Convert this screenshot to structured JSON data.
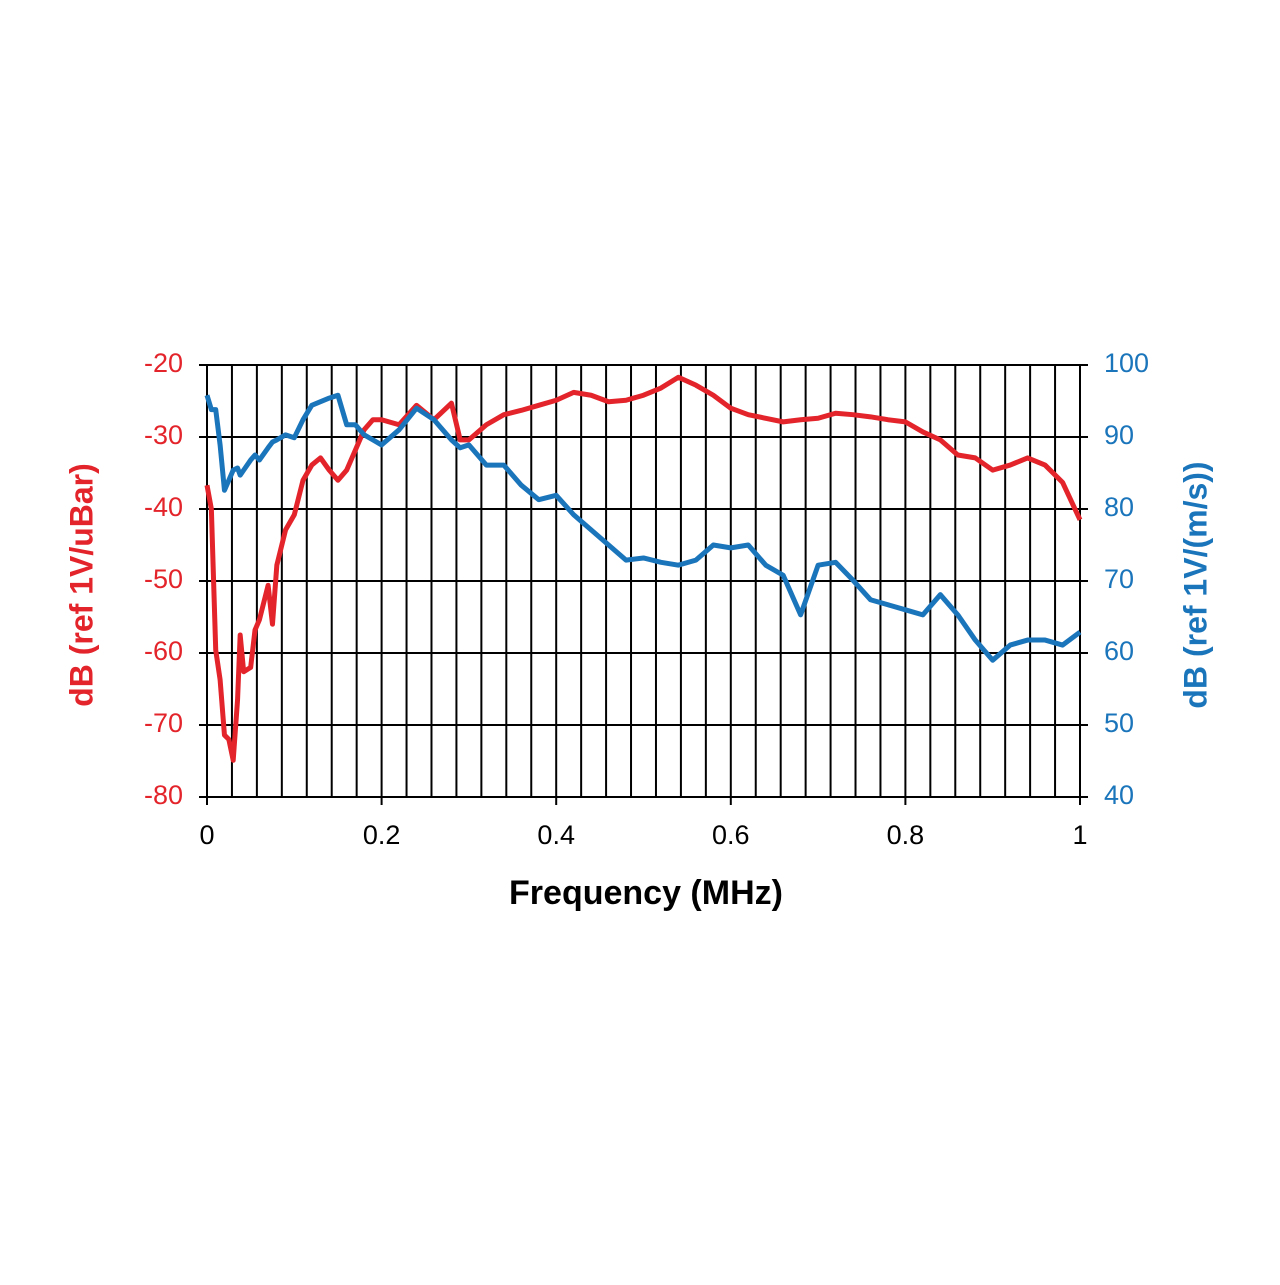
{
  "chart_data": {
    "type": "line",
    "xlabel": "Frequency (MHz)",
    "ylabel": "dB (ref 1V/uBar)",
    "y2label": "dB (ref 1V/(m/s))",
    "x": [
      0,
      0.005,
      0.01,
      0.015,
      0.02,
      0.025,
      0.03,
      0.035,
      0.038,
      0.042,
      0.05,
      0.055,
      0.06,
      0.07,
      0.075,
      0.08,
      0.09,
      0.1,
      0.11,
      0.12,
      0.13,
      0.14,
      0.15,
      0.16,
      0.17,
      0.18,
      0.19,
      0.2,
      0.22,
      0.24,
      0.26,
      0.28,
      0.29,
      0.3,
      0.32,
      0.34,
      0.36,
      0.38,
      0.4,
      0.42,
      0.44,
      0.46,
      0.48,
      0.5,
      0.52,
      0.54,
      0.56,
      0.58,
      0.6,
      0.62,
      0.64,
      0.66,
      0.68,
      0.7,
      0.72,
      0.74,
      0.76,
      0.78,
      0.8,
      0.82,
      0.84,
      0.86,
      0.88,
      0.9,
      0.92,
      0.94,
      0.96,
      0.98,
      1
    ],
    "series": [
      {
        "name": "dB (ref 1V/uBar)",
        "color": "#e3242b",
        "axis": "y",
        "values": [
          -36.7,
          -40,
          -59.6,
          -63.7,
          -71.4,
          -72,
          -74.9,
          -66.5,
          -57.5,
          -62.6,
          -62,
          -56.8,
          -55.4,
          -50.6,
          -56,
          -47.8,
          -42.9,
          -40.8,
          -36,
          -33.9,
          -32.9,
          -34.6,
          -36,
          -34.6,
          -31.8,
          -29,
          -27.6,
          -27.6,
          -28.3,
          -25.6,
          -27.6,
          -25.3,
          -30.4,
          -30.4,
          -28.3,
          -26.9,
          -26.3,
          -25.6,
          -24.9,
          -23.8,
          -24.2,
          -25.1,
          -24.9,
          -24.2,
          -23.2,
          -21.7,
          -22.8,
          -24.2,
          -26,
          -26.9,
          -27.4,
          -27.9,
          -27.6,
          -27.4,
          -26.7,
          -26.9,
          -27.2,
          -27.6,
          -27.9,
          -29.3,
          -30.4,
          -32.5,
          -32.9,
          -34.6,
          -33.9,
          -32.9,
          -33.9,
          -36.3,
          -41.5
        ]
      },
      {
        "name": "dB (ref 1V/(m/s))",
        "color": "#1b75bb",
        "axis": "y2",
        "values": [
          95.8,
          93.8,
          93.8,
          88.9,
          82.6,
          84,
          85.4,
          85.7,
          84.7,
          85.4,
          86.8,
          87.5,
          86.8,
          88.5,
          89.3,
          89.6,
          90.3,
          89.9,
          92.4,
          94.4,
          94.9,
          95.4,
          95.8,
          91.7,
          91.7,
          90.3,
          89.6,
          88.9,
          91,
          94,
          92.4,
          89.6,
          88.5,
          88.9,
          86.1,
          86.1,
          83.3,
          81.3,
          81.9,
          79.2,
          77.1,
          75,
          72.9,
          73.2,
          72.6,
          72.2,
          72.9,
          75,
          74.6,
          75,
          72.2,
          70.8,
          65.3,
          72.2,
          72.6,
          70.1,
          67.4,
          66.7,
          66,
          65.3,
          68.1,
          65.3,
          61.8,
          59,
          61.1,
          61.8,
          61.8,
          61.1,
          62.9
        ]
      }
    ],
    "xlim": [
      0,
      1
    ],
    "xticks": [
      0,
      0.2,
      0.4,
      0.6,
      0.8,
      1
    ],
    "ylim": [
      -80,
      -20
    ],
    "yticks": [
      -80,
      -70,
      -60,
      -50,
      -40,
      -30,
      -20
    ],
    "y2lim": [
      40,
      100
    ],
    "y2ticks": [
      40,
      50,
      60,
      70,
      80,
      90,
      100
    ],
    "grid": true
  }
}
